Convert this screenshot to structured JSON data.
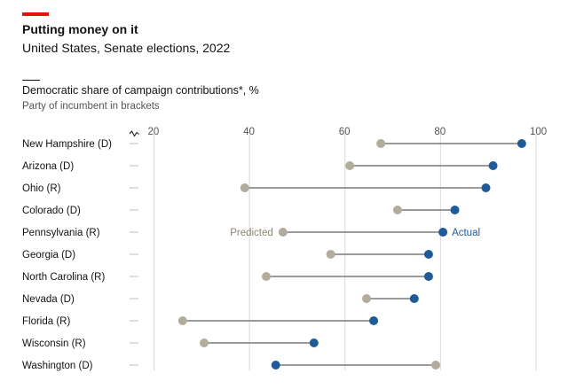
{
  "header": {
    "title": "Putting money on it",
    "subtitle": "United States, Senate elections, 2022"
  },
  "chart_data": {
    "type": "dumbbell",
    "title": "Democratic share of campaign contributions*, %",
    "subtitle": "Party of incumbent in brackets",
    "xlim": [
      20,
      100
    ],
    "xticks": [
      "20",
      "40",
      "60",
      "80",
      "100"
    ],
    "grid": true,
    "annotations": {
      "predicted": "Predicted",
      "actual": "Actual"
    },
    "colors": {
      "predicted": "#b3ac9b",
      "actual": "#1f5a99",
      "line": "#7a7a7a",
      "grid": "#d9d9d9",
      "accent": "#e3120b"
    },
    "categories": [
      "New Hampshire (D)",
      "Arizona (D)",
      "Ohio (R)",
      "Colorado (D)",
      "Pennsylvania (R)",
      "Georgia (D)",
      "North Carolina (R)",
      "Nevada (D)",
      "Florida (R)",
      "Wisconsin (R)",
      "Washington (D)"
    ],
    "series": [
      {
        "name": "Predicted",
        "values": [
          67.5,
          61,
          39,
          71,
          47,
          57,
          43.5,
          64.5,
          26,
          30.5,
          79
        ]
      },
      {
        "name": "Actual",
        "values": [
          97,
          91,
          89.5,
          83,
          80.5,
          77.5,
          77.5,
          74.5,
          66,
          53.5,
          45.5
        ]
      }
    ]
  }
}
